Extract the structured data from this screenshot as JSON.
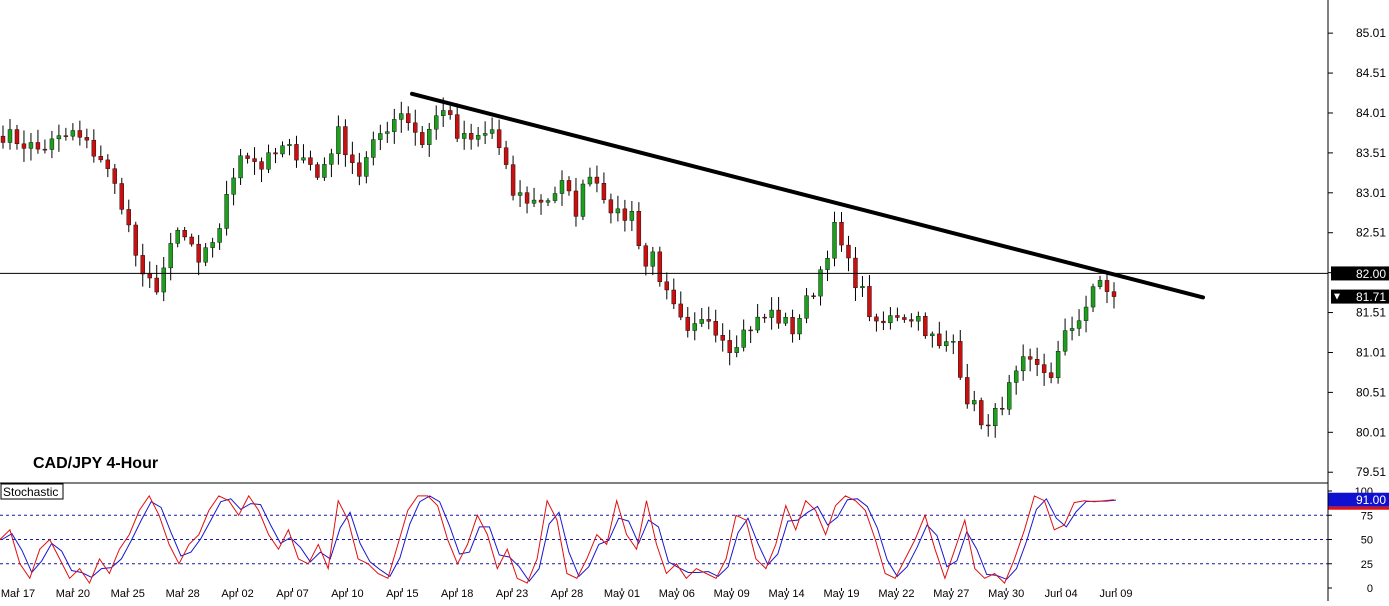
{
  "chart_data": {
    "type": "candlestick",
    "title": "CAD/JPY 4-Hour",
    "x_labels": [
      "Mar 17",
      "Mar 20",
      "Mar 25",
      "Mar 28",
      "Apr 02",
      "Apr 07",
      "Apr 10",
      "Apr 15",
      "Apr 18",
      "Apr 23",
      "Apr 28",
      "May 01",
      "May 06",
      "May 09",
      "May 14",
      "May 19",
      "May 22",
      "May 27",
      "May 30",
      "Jun 04",
      "Jun 09"
    ],
    "y_ticks": [
      "85.01",
      "84.51",
      "84.01",
      "83.51",
      "83.01",
      "82.51",
      "82.01",
      "81.51",
      "81.01",
      "80.51",
      "80.01",
      "79.51"
    ],
    "ylim": [
      79.4,
      85.35
    ],
    "colors": {
      "up": "#1e9e1e",
      "down": "#c81010",
      "wick": "#000000",
      "trendline": "#000000",
      "stoch_k": "#e01010",
      "stoch_d": "#1818d0",
      "levels": "#1818a0"
    },
    "price_path": [
      [
        0,
        83.75
      ],
      [
        5,
        83.55
      ],
      [
        10,
        83.75
      ],
      [
        14,
        83.45
      ],
      [
        17,
        82.9
      ],
      [
        20,
        81.9
      ],
      [
        22,
        81.85
      ],
      [
        25,
        82.5
      ],
      [
        27,
        82.35
      ],
      [
        28,
        82.05
      ],
      [
        31,
        82.6
      ],
      [
        34,
        83.55
      ],
      [
        37,
        83.35
      ],
      [
        40,
        83.55
      ],
      [
        43,
        83.5
      ],
      [
        45,
        83.2
      ],
      [
        48,
        83.75
      ],
      [
        51,
        83.25
      ],
      [
        54,
        83.75
      ],
      [
        57,
        84.05
      ],
      [
        60,
        83.65
      ],
      [
        63,
        84.1
      ],
      [
        65,
        83.7
      ],
      [
        67,
        83.65
      ],
      [
        70,
        83.8
      ],
      [
        73,
        83.0
      ],
      [
        76,
        82.9
      ],
      [
        78,
        82.95
      ],
      [
        80,
        83.1
      ],
      [
        82,
        82.8
      ],
      [
        84,
        83.3
      ],
      [
        86,
        83.0
      ],
      [
        88,
        82.7
      ],
      [
        90,
        82.75
      ],
      [
        92,
        82.1
      ],
      [
        93,
        82.25
      ],
      [
        95,
        81.7
      ],
      [
        98,
        81.2
      ],
      [
        101,
        81.45
      ],
      [
        104,
        81.1
      ],
      [
        107,
        81.35
      ],
      [
        110,
        81.5
      ],
      [
        113,
        81.3
      ],
      [
        116,
        81.8
      ],
      [
        119,
        82.55
      ],
      [
        121,
        82.1
      ],
      [
        123,
        81.75
      ],
      [
        125,
        81.3
      ],
      [
        128,
        81.5
      ],
      [
        131,
        81.45
      ],
      [
        134,
        81.05
      ],
      [
        136,
        81.15
      ],
      [
        138,
        80.45
      ],
      [
        141,
        80.05
      ],
      [
        143,
        80.4
      ],
      [
        146,
        80.85
      ],
      [
        148,
        80.8
      ],
      [
        150,
        80.75
      ],
      [
        152,
        81.2
      ],
      [
        155,
        81.6
      ],
      [
        157,
        81.9
      ],
      [
        159,
        81.71
      ]
    ],
    "trendline": [
      [
        84.25,
        0
      ],
      [
        81.7,
        1
      ]
    ],
    "horizontal_level": {
      "value": 82.0,
      "label": "82.00"
    },
    "last_price": {
      "value": 81.71,
      "label": "81.71"
    },
    "indicator": {
      "name": "Stochastic",
      "y_ticks": [
        "100",
        "75",
        "50",
        "25",
        "0"
      ],
      "levels": [
        75,
        50,
        25
      ],
      "last_value": "91.00",
      "k_path": [
        [
          0,
          50
        ],
        [
          1,
          60
        ],
        [
          2,
          25
        ],
        [
          3,
          10
        ],
        [
          4,
          40
        ],
        [
          5,
          50
        ],
        [
          6,
          30
        ],
        [
          7,
          10
        ],
        [
          8,
          20
        ],
        [
          9,
          5
        ],
        [
          10,
          30
        ],
        [
          11,
          15
        ],
        [
          12,
          40
        ],
        [
          13,
          55
        ],
        [
          14,
          80
        ],
        [
          15,
          95
        ],
        [
          16,
          75
        ],
        [
          17,
          45
        ],
        [
          18,
          25
        ],
        [
          19,
          45
        ],
        [
          20,
          55
        ],
        [
          21,
          80
        ],
        [
          22,
          95
        ],
        [
          23,
          90
        ],
        [
          24,
          75
        ],
        [
          25,
          95
        ],
        [
          26,
          80
        ],
        [
          27,
          55
        ],
        [
          28,
          40
        ],
        [
          29,
          60
        ],
        [
          30,
          30
        ],
        [
          31,
          25
        ],
        [
          32,
          45
        ],
        [
          33,
          20
        ],
        [
          34,
          90
        ],
        [
          35,
          70
        ],
        [
          36,
          30
        ],
        [
          37,
          25
        ],
        [
          38,
          15
        ],
        [
          39,
          10
        ],
        [
          40,
          45
        ],
        [
          41,
          80
        ],
        [
          42,
          95
        ],
        [
          43,
          95
        ],
        [
          44,
          85
        ],
        [
          45,
          50
        ],
        [
          46,
          25
        ],
        [
          47,
          45
        ],
        [
          48,
          75
        ],
        [
          49,
          55
        ],
        [
          50,
          20
        ],
        [
          51,
          40
        ],
        [
          52,
          10
        ],
        [
          53,
          5
        ],
        [
          54,
          30
        ],
        [
          55,
          90
        ],
        [
          56,
          70
        ],
        [
          57,
          15
        ],
        [
          58,
          10
        ],
        [
          59,
          30
        ],
        [
          60,
          55
        ],
        [
          61,
          45
        ],
        [
          62,
          90
        ],
        [
          63,
          55
        ],
        [
          64,
          40
        ],
        [
          65,
          90
        ],
        [
          66,
          45
        ],
        [
          67,
          15
        ],
        [
          68,
          25
        ],
        [
          69,
          10
        ],
        [
          70,
          20
        ],
        [
          71,
          15
        ],
        [
          72,
          10
        ],
        [
          73,
          30
        ],
        [
          74,
          75
        ],
        [
          75,
          70
        ],
        [
          76,
          30
        ],
        [
          77,
          20
        ],
        [
          78,
          45
        ],
        [
          79,
          85
        ],
        [
          80,
          60
        ],
        [
          81,
          90
        ],
        [
          82,
          80
        ],
        [
          83,
          55
        ],
        [
          84,
          85
        ],
        [
          85,
          95
        ],
        [
          86,
          90
        ],
        [
          87,
          80
        ],
        [
          88,
          50
        ],
        [
          89,
          15
        ],
        [
          90,
          10
        ],
        [
          91,
          30
        ],
        [
          92,
          50
        ],
        [
          93,
          75
        ],
        [
          94,
          40
        ],
        [
          95,
          10
        ],
        [
          96,
          40
        ],
        [
          97,
          70
        ],
        [
          98,
          20
        ],
        [
          99,
          10
        ],
        [
          100,
          15
        ],
        [
          101,
          5
        ],
        [
          102,
          30
        ],
        [
          103,
          60
        ],
        [
          104,
          95
        ],
        [
          105,
          90
        ],
        [
          106,
          60
        ],
        [
          107,
          65
        ],
        [
          108,
          88
        ],
        [
          109,
          90
        ],
        [
          110,
          89
        ],
        [
          111,
          90
        ],
        [
          112,
          91
        ]
      ]
    }
  }
}
